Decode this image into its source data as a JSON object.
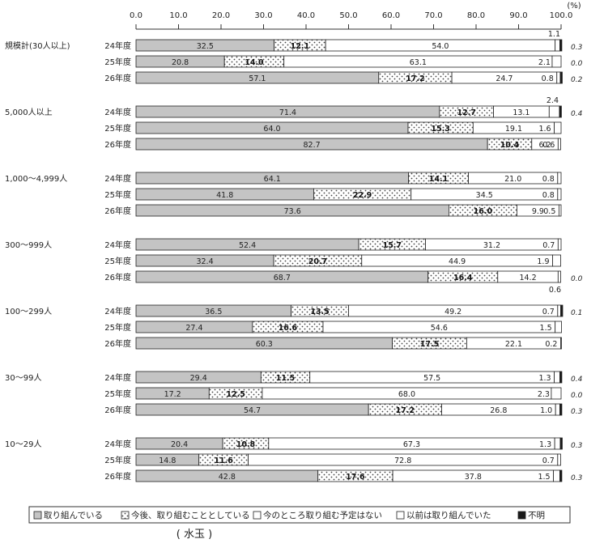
{
  "chart_data": {
    "type": "bar",
    "stacked": true,
    "orientation": "horizontal",
    "unit": "(%)",
    "xlim": [
      0,
      100
    ],
    "x_ticks": [
      "0.0",
      "10.0",
      "20.0",
      "30.0",
      "40.0",
      "50.0",
      "60.0",
      "70.0",
      "80.0",
      "90.0",
      "100.0"
    ],
    "legend_position": "bottom",
    "series": [
      {
        "name": "取り組んでいる",
        "color": "#c4c4c4"
      },
      {
        "name": "今後、取り組むこととしている",
        "color": "#ffffff",
        "pattern": "dotted"
      },
      {
        "name": "今のところ取り組む予定はない",
        "color": "#ffffff"
      },
      {
        "name": "以前は取り組んでいた",
        "color": "#ffffff"
      },
      {
        "name": "不明",
        "color": "#1a1a1a"
      }
    ],
    "groups": [
      {
        "label": "規模計(30人以上)",
        "rows": [
          {
            "year": "24年度",
            "values": [
              32.5,
              12.1,
              54.0,
              1.1,
              0.3
            ],
            "labels": [
              "32.5",
              "12.1",
              "54.0",
              "1.1",
              "0.3"
            ]
          },
          {
            "year": "25年度",
            "values": [
              20.8,
              14.0,
              63.1,
              2.1,
              0.0
            ],
            "labels": [
              "20.8",
              "14.0",
              "63.1",
              "2.1",
              "0.0"
            ]
          },
          {
            "year": "26年度",
            "values": [
              57.1,
              17.2,
              24.7,
              0.8,
              0.2
            ],
            "labels": [
              "57.1",
              "17.2",
              "24.7",
              "0.8",
              "0.2"
            ]
          }
        ]
      },
      {
        "label": "5,000人以上",
        "rows": [
          {
            "year": "24年度",
            "values": [
              71.4,
              12.7,
              13.1,
              2.4,
              0.4
            ],
            "labels": [
              "71.4",
              "12.7",
              "13.1",
              "2.4",
              "0.4"
            ]
          },
          {
            "year": "25年度",
            "values": [
              64.0,
              15.3,
              19.1,
              1.6,
              0.0
            ],
            "labels": [
              "64.0",
              "15.3",
              "19.1",
              "1.6",
              ""
            ]
          },
          {
            "year": "26年度",
            "values": [
              82.7,
              10.4,
              6.2,
              0.6,
              0.0
            ],
            "labels": [
              "82.7",
              "10.4",
              "6.2",
              "0.6",
              ""
            ]
          }
        ]
      },
      {
        "label": "1,000～4,999人",
        "rows": [
          {
            "year": "24年度",
            "values": [
              64.1,
              14.1,
              21.0,
              0.8,
              0.0
            ],
            "labels": [
              "64.1",
              "14.1",
              "21.0",
              "0.8",
              ""
            ]
          },
          {
            "year": "25年度",
            "values": [
              41.8,
              22.9,
              34.5,
              0.8,
              0.0
            ],
            "labels": [
              "41.8",
              "22.9",
              "34.5",
              "0.8",
              ""
            ]
          },
          {
            "year": "26年度",
            "values": [
              73.6,
              16.0,
              9.9,
              0.5,
              0.0
            ],
            "labels": [
              "73.6",
              "16.0",
              "9.9",
              "0.5",
              ""
            ]
          }
        ]
      },
      {
        "label": "300～999人",
        "rows": [
          {
            "year": "24年度",
            "values": [
              52.4,
              15.7,
              31.2,
              0.7,
              0.0
            ],
            "labels": [
              "52.4",
              "15.7",
              "31.2",
              "0.7",
              ""
            ]
          },
          {
            "year": "25年度",
            "values": [
              32.4,
              20.7,
              44.9,
              1.9,
              0.0
            ],
            "labels": [
              "32.4",
              "20.7",
              "44.9",
              "1.9",
              ""
            ]
          },
          {
            "year": "26年度",
            "values": [
              68.7,
              16.4,
              14.2,
              0.6,
              0.0
            ],
            "labels": [
              "68.7",
              "16.4",
              "14.2",
              "0.6",
              "0.0"
            ]
          }
        ]
      },
      {
        "label": "100～299人",
        "rows": [
          {
            "year": "24年度",
            "values": [
              36.5,
              13.5,
              49.2,
              0.7,
              0.1
            ],
            "labels": [
              "36.5",
              "13.5",
              "49.2",
              "0.7",
              "0.1"
            ]
          },
          {
            "year": "25年度",
            "values": [
              27.4,
              16.6,
              54.6,
              1.5,
              0.0
            ],
            "labels": [
              "27.4",
              "16.6",
              "54.6",
              "1.5",
              ""
            ]
          },
          {
            "year": "26年度",
            "values": [
              60.3,
              17.5,
              22.1,
              0.2,
              0.0
            ],
            "labels": [
              "60.3",
              "17.5",
              "22.1",
              "0.2",
              ""
            ]
          }
        ]
      },
      {
        "label": "30～99人",
        "rows": [
          {
            "year": "24年度",
            "values": [
              29.4,
              11.5,
              57.5,
              1.3,
              0.4
            ],
            "labels": [
              "29.4",
              "11.5",
              "57.5",
              "1.3",
              "0.4"
            ]
          },
          {
            "year": "25年度",
            "values": [
              17.2,
              12.5,
              68.0,
              2.3,
              0.0
            ],
            "labels": [
              "17.2",
              "12.5",
              "68.0",
              "2.3",
              "0.0"
            ]
          },
          {
            "year": "26年度",
            "values": [
              54.7,
              17.2,
              26.8,
              1.0,
              0.3
            ],
            "labels": [
              "54.7",
              "17.2",
              "26.8",
              "1.0",
              "0.3"
            ]
          }
        ]
      },
      {
        "label": "10～29人",
        "rows": [
          {
            "year": "24年度",
            "values": [
              20.4,
              10.8,
              67.3,
              1.3,
              0.3
            ],
            "labels": [
              "20.4",
              "10.8",
              "67.3",
              "1.3",
              "0.3"
            ]
          },
          {
            "year": "25年度",
            "values": [
              14.8,
              11.6,
              72.8,
              0.7,
              0.0
            ],
            "labels": [
              "14.8",
              "11.6",
              "72.8",
              "0.7",
              ""
            ]
          },
          {
            "year": "26年度",
            "values": [
              42.8,
              17.6,
              37.8,
              1.5,
              0.3
            ],
            "labels": [
              "42.8",
              "17.6",
              "37.8",
              "1.5",
              "0.3"
            ]
          }
        ]
      }
    ],
    "annotation": "( 水玉 )"
  }
}
